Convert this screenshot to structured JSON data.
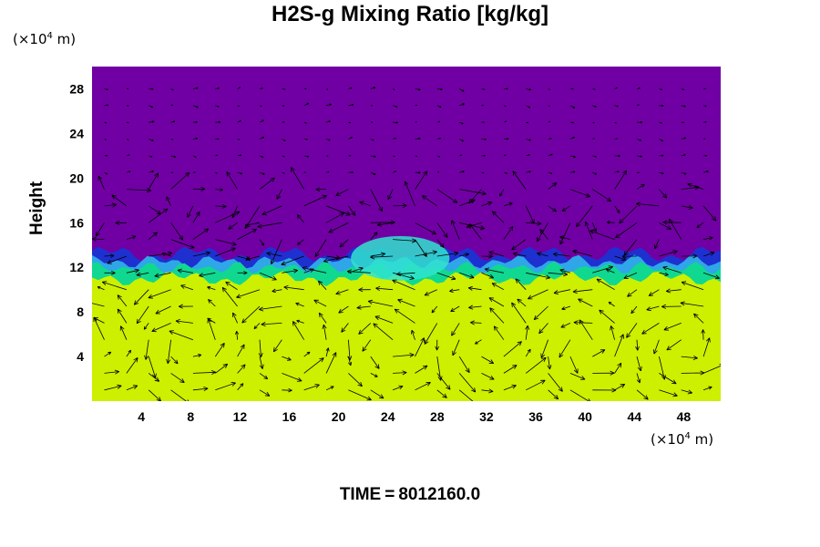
{
  "chart_data": {
    "type": "heatmap",
    "title": "H2S-g Mixing Ratio [kg/kg]",
    "ylabel": "Height",
    "x_unit": {
      "prefix": "(×10",
      "exp": "4",
      "suffix": " m)"
    },
    "y_unit": {
      "prefix": "(×10",
      "exp": "4",
      "suffix": " m)"
    },
    "xlim": [
      0,
      51
    ],
    "ylim": [
      0,
      30
    ],
    "x_ticks": [
      4,
      8,
      12,
      16,
      20,
      24,
      28,
      32,
      36,
      40,
      44,
      48
    ],
    "y_ticks": [
      4,
      8,
      12,
      16,
      20,
      24,
      28
    ],
    "field_regions": [
      {
        "name": "upper",
        "color": "#7000a4"
      },
      {
        "name": "boundary",
        "color": "#1e30d0"
      },
      {
        "name": "transition",
        "color": "#10d890"
      },
      {
        "name": "lower",
        "color": "#ccf000"
      }
    ],
    "boundary_height": 12.3,
    "vectors_shown": true
  },
  "footer": {
    "label": "TIME",
    "eq": "=",
    "value": "8012160.0"
  }
}
